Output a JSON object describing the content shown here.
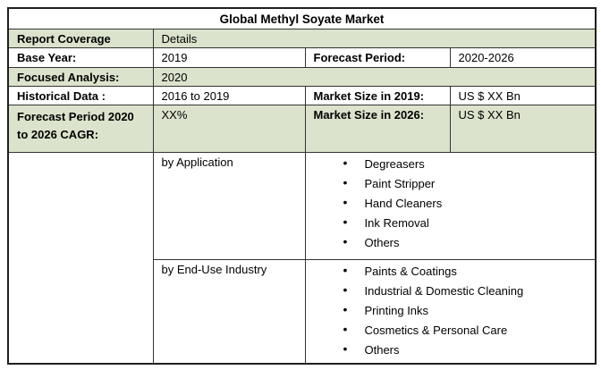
{
  "title": "Global Methyl Soyate Market",
  "colors": {
    "row_shaded": "#dbe3cc",
    "border": "#333333",
    "page_bg": "#ffffff",
    "text": "#000000"
  },
  "bullet_glyph": "•",
  "fields": {
    "report_coverage": {
      "label": "Report Coverage",
      "value": "Details"
    },
    "base_year": {
      "label": "Base Year:",
      "value": "2019"
    },
    "forecast_period": {
      "label": "Forecast Period:",
      "value": "2020-2026"
    },
    "focused_analysis": {
      "label": "Focused Analysis:",
      "value": "2020"
    },
    "historical_data": {
      "label": "Historical Data :",
      "value": "2016 to 2019"
    },
    "market_size_2019": {
      "label": "Market Size in 2019:",
      "value": "US $ XX Bn"
    },
    "forecast_cagr": {
      "label": "Forecast Period 2020 to 2026 CAGR:",
      "value": "XX%"
    },
    "market_size_2026": {
      "label": "Market Size in 2026:",
      "value": "US $ XX Bn"
    }
  },
  "segments": [
    {
      "label": "by Application",
      "items": [
        "Degreasers",
        "Paint Stripper",
        "Hand Cleaners",
        "Ink Removal",
        "Others"
      ]
    },
    {
      "label": "by End-Use Industry",
      "items": [
        "Paints & Coatings",
        "Industrial & Domestic Cleaning",
        "Printing Inks",
        "Cosmetics & Personal Care",
        "Others"
      ]
    }
  ]
}
